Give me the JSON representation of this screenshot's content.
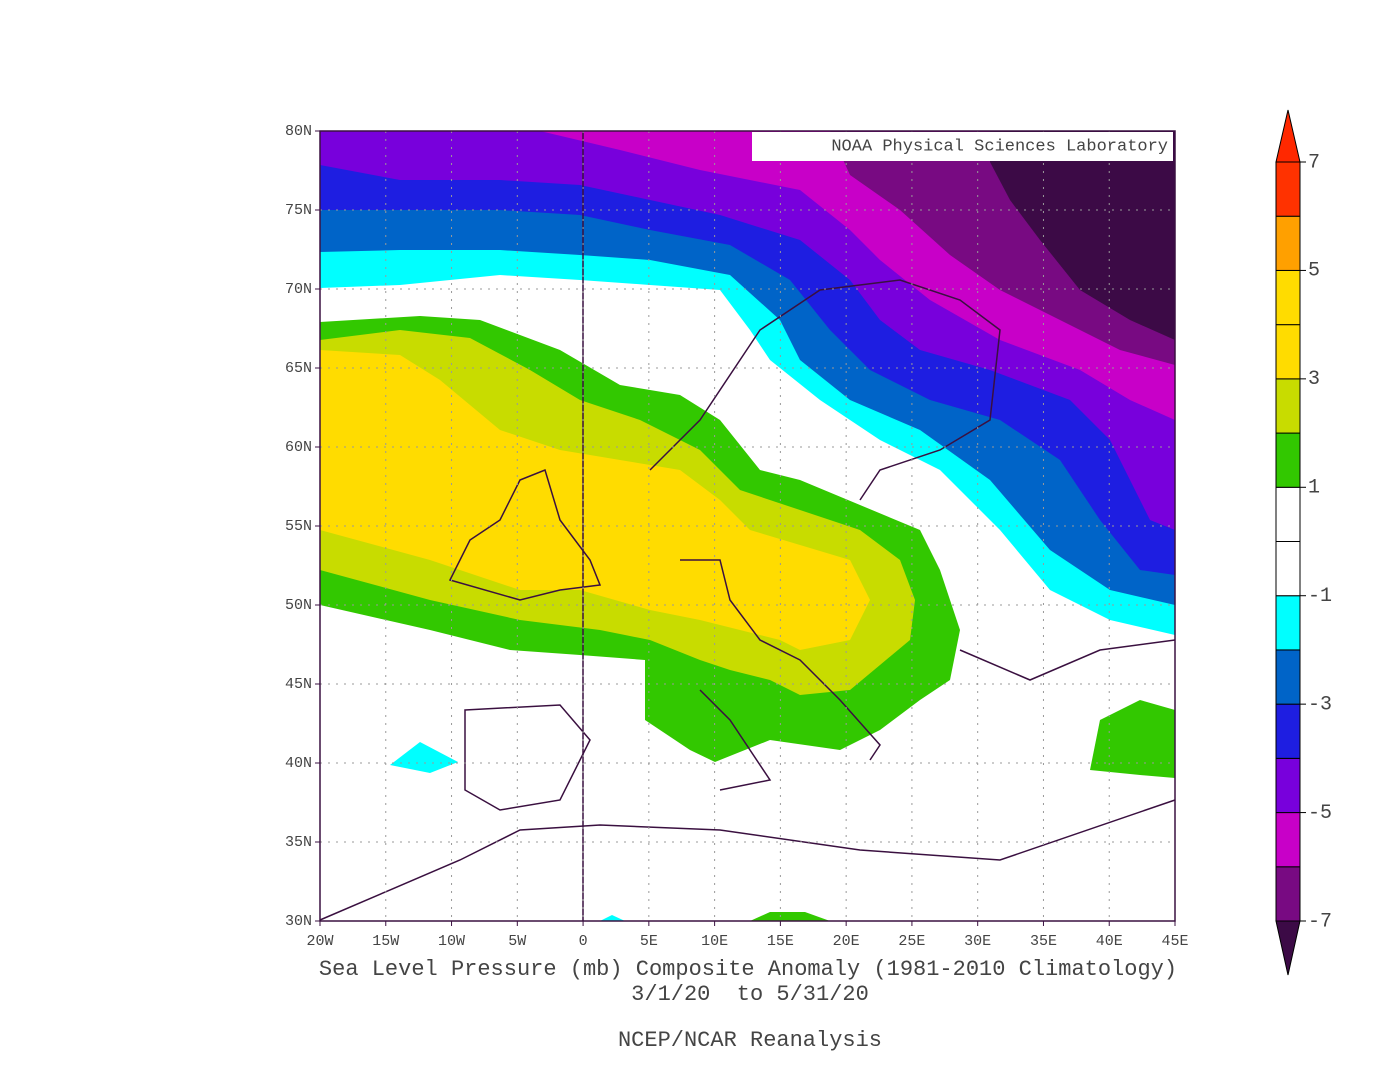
{
  "header": {
    "badge": "NOAA Physical Sciences Laboratory"
  },
  "map": {
    "xlim": [
      -20,
      45
    ],
    "ylim": [
      30,
      80
    ],
    "xticks": [
      {
        "value": -20,
        "label": "20W"
      },
      {
        "value": -15,
        "label": "15W"
      },
      {
        "value": -10,
        "label": "10W"
      },
      {
        "value": -5,
        "label": "5W"
      },
      {
        "value": 0,
        "label": "0"
      },
      {
        "value": 5,
        "label": "5E"
      },
      {
        "value": 10,
        "label": "10E"
      },
      {
        "value": 15,
        "label": "15E"
      },
      {
        "value": 20,
        "label": "20E"
      },
      {
        "value": 25,
        "label": "25E"
      },
      {
        "value": 30,
        "label": "30E"
      },
      {
        "value": 35,
        "label": "35E"
      },
      {
        "value": 40,
        "label": "40E"
      },
      {
        "value": 45,
        "label": "45E"
      }
    ],
    "yticks": [
      {
        "value": 80,
        "label": "80N"
      },
      {
        "value": 75,
        "label": "75N"
      },
      {
        "value": 70,
        "label": "70N"
      },
      {
        "value": 65,
        "label": "65N"
      },
      {
        "value": 60,
        "label": "60N"
      },
      {
        "value": 55,
        "label": "55N"
      },
      {
        "value": 50,
        "label": "50N"
      },
      {
        "value": 45,
        "label": "45N"
      },
      {
        "value": 40,
        "label": "40N"
      },
      {
        "value": 35,
        "label": "35N"
      },
      {
        "value": 30,
        "label": "30N"
      }
    ],
    "grid": true
  },
  "caption": {
    "title": "Sea Level Pressure (mb) Composite Anomaly (1981-2010 Climatology)",
    "dates": "3/1/20  to 5/31/20",
    "source": "NCEP/NCAR Reanalysis"
  },
  "colorbar": {
    "bounds": [
      -7,
      -6,
      -5,
      -4,
      -3,
      -2,
      -1,
      0,
      1,
      2,
      3,
      4,
      5,
      6,
      7
    ],
    "colors": [
      "#780a82",
      "#c800c8",
      "#7800dc",
      "#1e1ee1",
      "#0064c8",
      "#00ffff",
      "#ffffff",
      "#ffffff",
      "#32c800",
      "#c8dc00",
      "#ffdc00",
      "#ffdc00",
      "#ffa000",
      "#ff3200"
    ],
    "under_color": "#3c0a46",
    "over_color": "#ff2800",
    "ticks": [
      7,
      5,
      3,
      1,
      -1,
      -3,
      -5,
      -7
    ]
  }
}
